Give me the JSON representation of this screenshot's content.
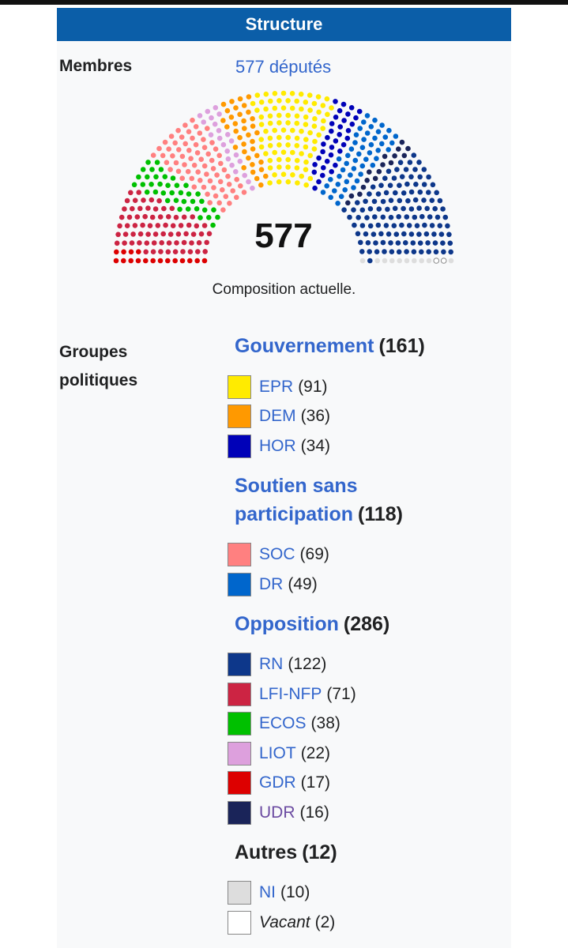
{
  "header": {
    "title": "Structure"
  },
  "members": {
    "label": "Membres",
    "value": "577 députés"
  },
  "chart": {
    "total": 577,
    "caption": "Composition actuelle."
  },
  "groups_label": "Groupes politiques",
  "groups": [
    {
      "name": "Gouvernement",
      "seats": 161,
      "seats_label": "(161)",
      "link": true,
      "parties": [
        {
          "name": "EPR",
          "seats": 91,
          "seats_label": "(91)",
          "color": "#ffeb00",
          "link": true
        },
        {
          "name": "DEM",
          "seats": 36,
          "seats_label": "(36)",
          "color": "#ff9900",
          "link": true
        },
        {
          "name": "HOR",
          "seats": 34,
          "seats_label": "(34)",
          "color": "#0001b8",
          "link": true
        }
      ]
    },
    {
      "name": "Soutien sans participation",
      "seats": 118,
      "seats_label": "(118)",
      "link": true,
      "parties": [
        {
          "name": "SOC",
          "seats": 69,
          "seats_label": "(69)",
          "color": "#ff8080",
          "link": true
        },
        {
          "name": "DR",
          "seats": 49,
          "seats_label": "(49)",
          "color": "#0066cc",
          "link": true
        }
      ]
    },
    {
      "name": "Opposition",
      "seats": 286,
      "seats_label": "(286)",
      "link": true,
      "parties": [
        {
          "name": "RN",
          "seats": 122,
          "seats_label": "(122)",
          "color": "#0d378a",
          "link": true
        },
        {
          "name": "LFI-NFP",
          "seats": 71,
          "seats_label": "(71)",
          "color": "#cc2443",
          "link": true
        },
        {
          "name": "ECOS",
          "seats": 38,
          "seats_label": "(38)",
          "color": "#00c000",
          "link": true
        },
        {
          "name": "LIOT",
          "seats": 22,
          "seats_label": "(22)",
          "color": "#dda0dd",
          "link": true
        },
        {
          "name": "GDR",
          "seats": 17,
          "seats_label": "(17)",
          "color": "#dd0000",
          "link": true
        },
        {
          "name": "UDR",
          "seats": 16,
          "seats_label": "(16)",
          "color": "#1a2459",
          "link": true
        }
      ]
    },
    {
      "name": "Autres",
      "seats": 12,
      "seats_label": "(12)",
      "link": false,
      "parties": [
        {
          "name": "NI",
          "seats": 10,
          "seats_label": "(10)",
          "color": "#dddddd",
          "link": true
        },
        {
          "name": "Vacant",
          "seats": 2,
          "seats_label": "(2)",
          "color": "#ffffff",
          "link": false,
          "italic": true
        }
      ]
    }
  ]
}
